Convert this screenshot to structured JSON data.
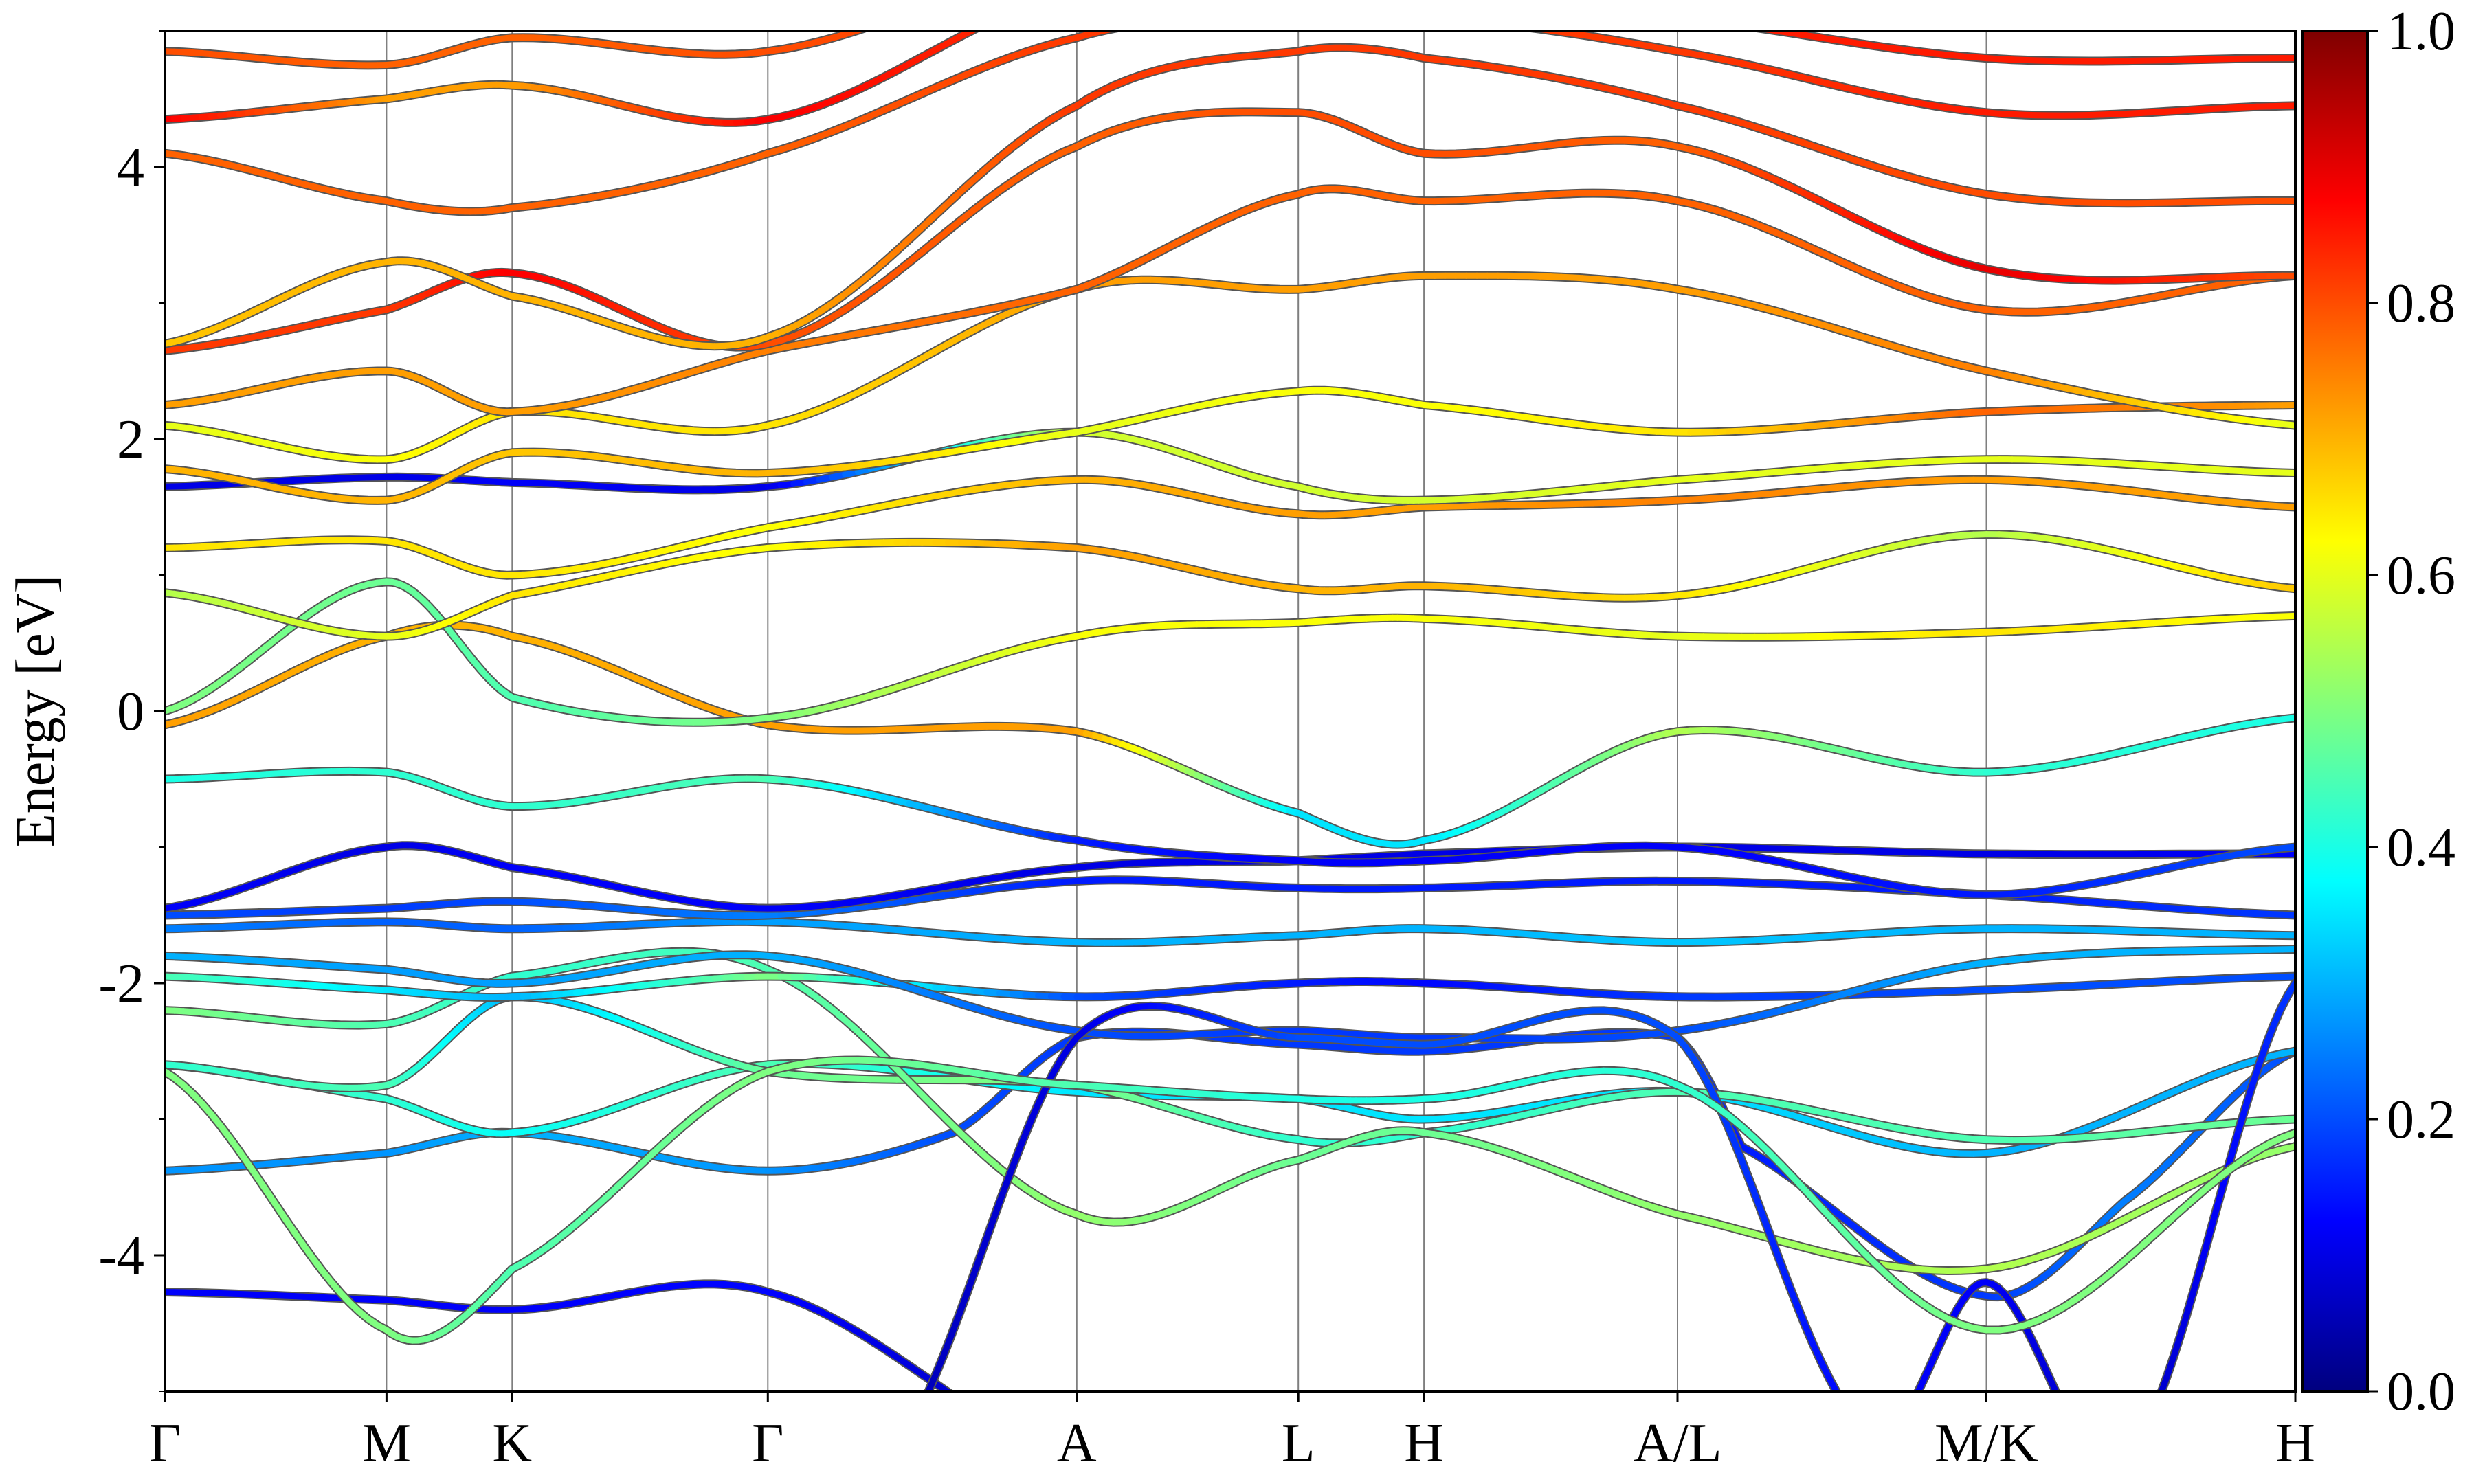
{
  "chart_data": {
    "type": "line",
    "title": "",
    "xlabel": "",
    "ylabel": "Energy [eV]",
    "ylim": [
      -5,
      5
    ],
    "yticks": [
      -4,
      -2,
      0,
      2,
      4
    ],
    "ytick_labels": [
      "-4",
      "-2",
      "0",
      "2",
      "4"
    ],
    "kpath": [
      {
        "label": "Γ",
        "x": 0.0
      },
      {
        "label": "M",
        "x": 0.104
      },
      {
        "label": "K",
        "x": 0.163
      },
      {
        "label": "Γ",
        "x": 0.283
      },
      {
        "label": "A",
        "x": 0.428
      },
      {
        "label": "L",
        "x": 0.532
      },
      {
        "label": "H",
        "x": 0.591
      },
      {
        "label": "A/L",
        "x": 0.71
      },
      {
        "label": "M/K",
        "x": 0.855
      },
      {
        "label": "H",
        "x": 1.0
      }
    ],
    "colorbar": {
      "colormap": "jet",
      "range": [
        0.0,
        1.0
      ],
      "ticks": [
        0.0,
        0.2,
        0.4,
        0.6,
        0.8,
        1.0
      ],
      "tick_labels": [
        "0.0",
        "0.2",
        "0.4",
        "0.6",
        "0.8",
        "1.0"
      ]
    },
    "series": [
      {
        "x": [
          0,
          0.104,
          0.163,
          0.283,
          0.428,
          0.532,
          0.591,
          0.71,
          0.855,
          1.0
        ],
        "y": [
          -4.27,
          -4.33,
          -4.4,
          -4.27,
          -5.5,
          -5.5,
          -5.5,
          -5.5,
          -5.5,
          -5.5
        ],
        "c": [
          0.12,
          0.12,
          0.12,
          0.13,
          0.05,
          0.05,
          0.05,
          0.05,
          0.05,
          0.05
        ]
      },
      {
        "x": [
          0,
          0.104,
          0.163,
          0.283,
          0.37,
          0.428,
          0.532,
          0.591,
          0.71,
          0.74,
          0.855,
          0.92,
          1.0
        ],
        "y": [
          -3.38,
          -3.25,
          -3.1,
          -3.38,
          -3.1,
          -2.4,
          -2.45,
          -2.5,
          -2.4,
          -3.2,
          -4.3,
          -3.6,
          -2.5
        ],
        "c": [
          0.27,
          0.27,
          0.3,
          0.27,
          0.2,
          0.18,
          0.18,
          0.18,
          0.18,
          0.15,
          0.18,
          0.25,
          0.2
        ]
      },
      {
        "x": [
          0,
          0.104,
          0.163,
          0.283,
          0.428,
          0.532,
          0.591,
          0.71,
          0.855,
          1.0
        ],
        "y": [
          -2.6,
          -2.85,
          -3.1,
          -2.6,
          -2.8,
          -2.85,
          -3.0,
          -2.8,
          -3.25,
          -2.5
        ],
        "c": [
          0.45,
          0.42,
          0.38,
          0.45,
          0.35,
          0.35,
          0.35,
          0.35,
          0.3,
          0.3
        ]
      },
      {
        "x": [
          0,
          0.104,
          0.163,
          0.283,
          0.428,
          0.532,
          0.591,
          0.71,
          0.855,
          1.0
        ],
        "y": [
          -2.6,
          -2.75,
          -2.1,
          -2.65,
          -2.75,
          -3.15,
          -3.1,
          -2.8,
          -3.15,
          -3.0
        ],
        "c": [
          0.42,
          0.45,
          0.3,
          0.48,
          0.5,
          0.42,
          0.42,
          0.45,
          0.45,
          0.48
        ]
      },
      {
        "x": [
          0,
          0.104,
          0.163,
          0.283,
          0.428,
          0.532,
          0.591,
          0.71,
          0.855,
          1.0
        ],
        "y": [
          -2.2,
          -2.3,
          -1.95,
          -1.9,
          -3.7,
          -3.3,
          -3.1,
          -3.7,
          -4.1,
          -3.2
        ],
        "c": [
          0.5,
          0.45,
          0.42,
          0.45,
          0.52,
          0.48,
          0.48,
          0.52,
          0.55,
          0.52
        ]
      },
      {
        "x": [
          0,
          0.104,
          0.163,
          0.283,
          0.428,
          0.532,
          0.591,
          0.71,
          0.855,
          1.0
        ],
        "y": [
          -1.95,
          -2.05,
          -2.1,
          -1.95,
          -2.1,
          -2.0,
          -2.0,
          -2.1,
          -2.05,
          -1.95
        ],
        "c": [
          0.45,
          0.35,
          0.3,
          0.5,
          0.2,
          0.15,
          0.13,
          0.18,
          0.2,
          0.2
        ]
      },
      {
        "x": [
          0,
          0.104,
          0.163,
          0.283,
          0.428,
          0.532,
          0.591,
          0.71,
          0.855,
          1.0
        ],
        "y": [
          -1.8,
          -1.9,
          -2.0,
          -1.8,
          -2.35,
          -2.35,
          -2.4,
          -2.35,
          -1.85,
          -1.75
        ],
        "c": [
          0.3,
          0.28,
          0.28,
          0.3,
          0.2,
          0.18,
          0.18,
          0.2,
          0.3,
          0.3
        ]
      },
      {
        "x": [
          0,
          0.104,
          0.163,
          0.283,
          0.428,
          0.532,
          0.591,
          0.71,
          0.855,
          1.0
        ],
        "y": [
          -1.6,
          -1.55,
          -1.6,
          -1.55,
          -1.7,
          -1.65,
          -1.6,
          -1.7,
          -1.6,
          -1.65
        ],
        "c": [
          0.25,
          0.22,
          0.22,
          0.28,
          0.3,
          0.3,
          0.3,
          0.32,
          0.3,
          0.3
        ]
      },
      {
        "x": [
          0,
          0.104,
          0.163,
          0.283,
          0.428,
          0.532,
          0.591,
          0.71,
          0.855,
          1.0
        ],
        "y": [
          -1.5,
          -1.45,
          -1.4,
          -1.5,
          -1.25,
          -1.3,
          -1.3,
          -1.25,
          -1.35,
          -1.5
        ],
        "c": [
          0.2,
          0.18,
          0.2,
          0.25,
          0.15,
          0.15,
          0.15,
          0.15,
          0.15,
          0.18
        ]
      },
      {
        "x": [
          0,
          0.104,
          0.163,
          0.283,
          0.428,
          0.532,
          0.591,
          0.71,
          0.855,
          1.0
        ],
        "y": [
          -1.45,
          -1.0,
          -1.15,
          -1.45,
          -1.15,
          -1.1,
          -1.05,
          -1.0,
          -1.05,
          -1.05
        ],
        "c": [
          0.12,
          0.1,
          0.12,
          0.12,
          0.1,
          0.1,
          0.1,
          0.1,
          0.1,
          0.12
        ]
      },
      {
        "x": [
          0,
          0.104,
          0.163,
          0.283,
          0.428,
          0.532,
          0.591,
          0.71,
          0.855,
          1.0
        ],
        "y": [
          -0.5,
          -0.45,
          -0.7,
          -0.5,
          -0.95,
          -1.1,
          -1.1,
          -1.0,
          -1.35,
          -1.0
        ],
        "c": [
          0.4,
          0.42,
          0.42,
          0.45,
          0.15,
          0.12,
          0.12,
          0.12,
          0.15,
          0.2
        ]
      },
      {
        "x": [
          0,
          0.104,
          0.163,
          0.283,
          0.428,
          0.532,
          0.591,
          0.71,
          0.855,
          1.0
        ],
        "y": [
          -0.1,
          0.55,
          0.55,
          -0.1,
          -0.15,
          -0.75,
          -0.95,
          -0.15,
          -0.45,
          -0.05
        ],
        "c": [
          0.72,
          0.7,
          0.7,
          0.72,
          0.72,
          0.35,
          0.35,
          0.55,
          0.42,
          0.4
        ]
      },
      {
        "x": [
          0,
          0.104,
          0.163,
          0.283,
          0.428,
          0.532,
          0.591,
          0.71,
          0.855,
          1.0
        ],
        "y": [
          0.0,
          0.95,
          0.1,
          -0.05,
          0.55,
          0.65,
          0.68,
          0.55,
          0.58,
          0.7
        ],
        "c": [
          0.5,
          0.48,
          0.45,
          0.5,
          0.62,
          0.62,
          0.62,
          0.6,
          0.65,
          0.62
        ]
      },
      {
        "x": [
          0,
          0.104,
          0.163,
          0.283,
          0.428,
          0.532,
          0.591,
          0.71,
          0.855,
          1.0
        ],
        "y": [
          0.87,
          0.55,
          0.85,
          1.2,
          1.2,
          0.9,
          0.92,
          0.85,
          1.3,
          0.9
        ],
        "c": [
          0.55,
          0.6,
          0.65,
          0.62,
          0.72,
          0.7,
          0.7,
          0.65,
          0.55,
          0.68
        ]
      },
      {
        "x": [
          0,
          0.104,
          0.163,
          0.283,
          0.428,
          0.532,
          0.591,
          0.71,
          0.855,
          1.0
        ],
        "y": [
          1.2,
          1.25,
          1.0,
          1.35,
          1.7,
          1.45,
          1.5,
          1.55,
          1.7,
          1.5
        ],
        "c": [
          0.65,
          0.65,
          0.65,
          0.62,
          0.7,
          0.72,
          0.72,
          0.75,
          0.72,
          0.72
        ]
      },
      {
        "x": [
          0,
          0.104,
          0.163,
          0.283,
          0.428,
          0.532,
          0.591,
          0.71,
          0.855,
          1.0
        ],
        "y": [
          1.65,
          1.72,
          1.68,
          1.65,
          2.05,
          1.65,
          1.55,
          1.7,
          1.85,
          1.75
        ],
        "c": [
          0.1,
          0.1,
          0.12,
          0.1,
          0.58,
          0.58,
          0.58,
          0.6,
          0.6,
          0.6
        ]
      },
      {
        "x": [
          0,
          0.104,
          0.163,
          0.283,
          0.428,
          0.532,
          0.591,
          0.71,
          0.855,
          1.0
        ],
        "y": [
          1.78,
          1.55,
          1.9,
          1.75,
          2.05,
          2.35,
          2.25,
          2.05,
          2.2,
          2.25
        ],
        "c": [
          0.7,
          0.7,
          0.68,
          0.7,
          0.6,
          0.62,
          0.62,
          0.65,
          0.78,
          0.72
        ]
      },
      {
        "x": [
          0,
          0.104,
          0.163,
          0.283,
          0.428,
          0.532,
          0.591,
          0.71,
          0.855,
          1.0
        ],
        "y": [
          2.1,
          1.85,
          2.2,
          2.1,
          3.1,
          3.1,
          3.2,
          3.1,
          2.5,
          2.1
        ],
        "c": [
          0.6,
          0.62,
          0.65,
          0.65,
          0.72,
          0.72,
          0.72,
          0.72,
          0.75,
          0.6
        ]
      },
      {
        "x": [
          0,
          0.104,
          0.163,
          0.283,
          0.428,
          0.532,
          0.591,
          0.71,
          0.855,
          1.0
        ],
        "y": [
          2.25,
          2.5,
          2.2,
          2.65,
          3.1,
          3.8,
          3.75,
          3.75,
          2.95,
          3.2
        ],
        "c": [
          0.72,
          0.72,
          0.72,
          0.75,
          0.78,
          0.78,
          0.78,
          0.78,
          0.78,
          0.78
        ]
      },
      {
        "x": [
          0,
          0.104,
          0.163,
          0.283,
          0.428,
          0.532,
          0.591,
          0.71,
          0.855,
          1.0
        ],
        "y": [
          2.65,
          2.95,
          3.22,
          2.7,
          4.15,
          4.4,
          4.1,
          4.15,
          3.25,
          3.2
        ],
        "c": [
          0.82,
          0.82,
          0.88,
          0.8,
          0.78,
          0.8,
          0.8,
          0.78,
          0.9,
          0.8
        ]
      },
      {
        "x": [
          0,
          0.104,
          0.163,
          0.283,
          0.428,
          0.532,
          0.591,
          0.71,
          0.855,
          1.0
        ],
        "y": [
          2.7,
          3.3,
          3.05,
          2.75,
          4.45,
          4.85,
          4.8,
          4.45,
          3.8,
          3.75
        ],
        "c": [
          0.68,
          0.7,
          0.7,
          0.7,
          0.82,
          0.82,
          0.82,
          0.82,
          0.8,
          0.8
        ]
      },
      {
        "x": [
          0,
          0.104,
          0.163,
          0.283,
          0.428,
          0.532,
          0.591,
          0.71,
          0.855,
          1.0
        ],
        "y": [
          4.1,
          3.75,
          3.7,
          4.1,
          4.95,
          5.1,
          5.1,
          4.85,
          4.4,
          4.45
        ],
        "c": [
          0.78,
          0.78,
          0.78,
          0.78,
          0.82,
          0.82,
          0.82,
          0.82,
          0.85,
          0.85
        ]
      },
      {
        "x": [
          0,
          0.104,
          0.163,
          0.283,
          0.428,
          0.532,
          0.591,
          0.71,
          0.855,
          1.0
        ],
        "y": [
          4.35,
          4.5,
          4.6,
          4.35,
          5.3,
          5.3,
          5.3,
          5.1,
          4.8,
          4.8
        ],
        "c": [
          0.88,
          0.72,
          0.72,
          0.88,
          0.82,
          0.82,
          0.82,
          0.85,
          0.85,
          0.85
        ]
      },
      {
        "x": [
          0,
          0.104,
          0.163,
          0.283,
          0.428,
          0.532,
          0.591,
          0.71,
          0.855,
          1.0
        ],
        "y": [
          4.85,
          4.75,
          4.95,
          4.85,
          5.5,
          5.5,
          5.5,
          5.5,
          5.2,
          5.2
        ],
        "c": [
          0.8,
          0.78,
          0.78,
          0.8,
          0.82,
          0.82,
          0.82,
          0.85,
          0.85,
          0.85
        ]
      },
      {
        "x": [
          0.34,
          0.428,
          0.532,
          0.591,
          0.71,
          0.8,
          0.855,
          0.92,
          1.0
        ],
        "y": [
          -5.5,
          -2.4,
          -2.4,
          -2.45,
          -2.4,
          -5.3,
          -4.2,
          -5.5,
          -2.0
        ],
        "c": [
          0.05,
          0.1,
          0.2,
          0.2,
          0.2,
          0.12,
          0.12,
          0.05,
          0.18
        ]
      },
      {
        "x": [
          0.0,
          0.104,
          0.163,
          0.283,
          0.428,
          0.532,
          0.591,
          0.71,
          0.855,
          1.0
        ],
        "y": [
          -2.65,
          -4.55,
          -4.1,
          -2.65,
          -2.75,
          -2.85,
          -2.85,
          -2.75,
          -4.55,
          -3.1
        ],
        "c": [
          0.5,
          0.5,
          0.45,
          0.5,
          0.45,
          0.4,
          0.4,
          0.42,
          0.5,
          0.5
        ]
      }
    ]
  }
}
